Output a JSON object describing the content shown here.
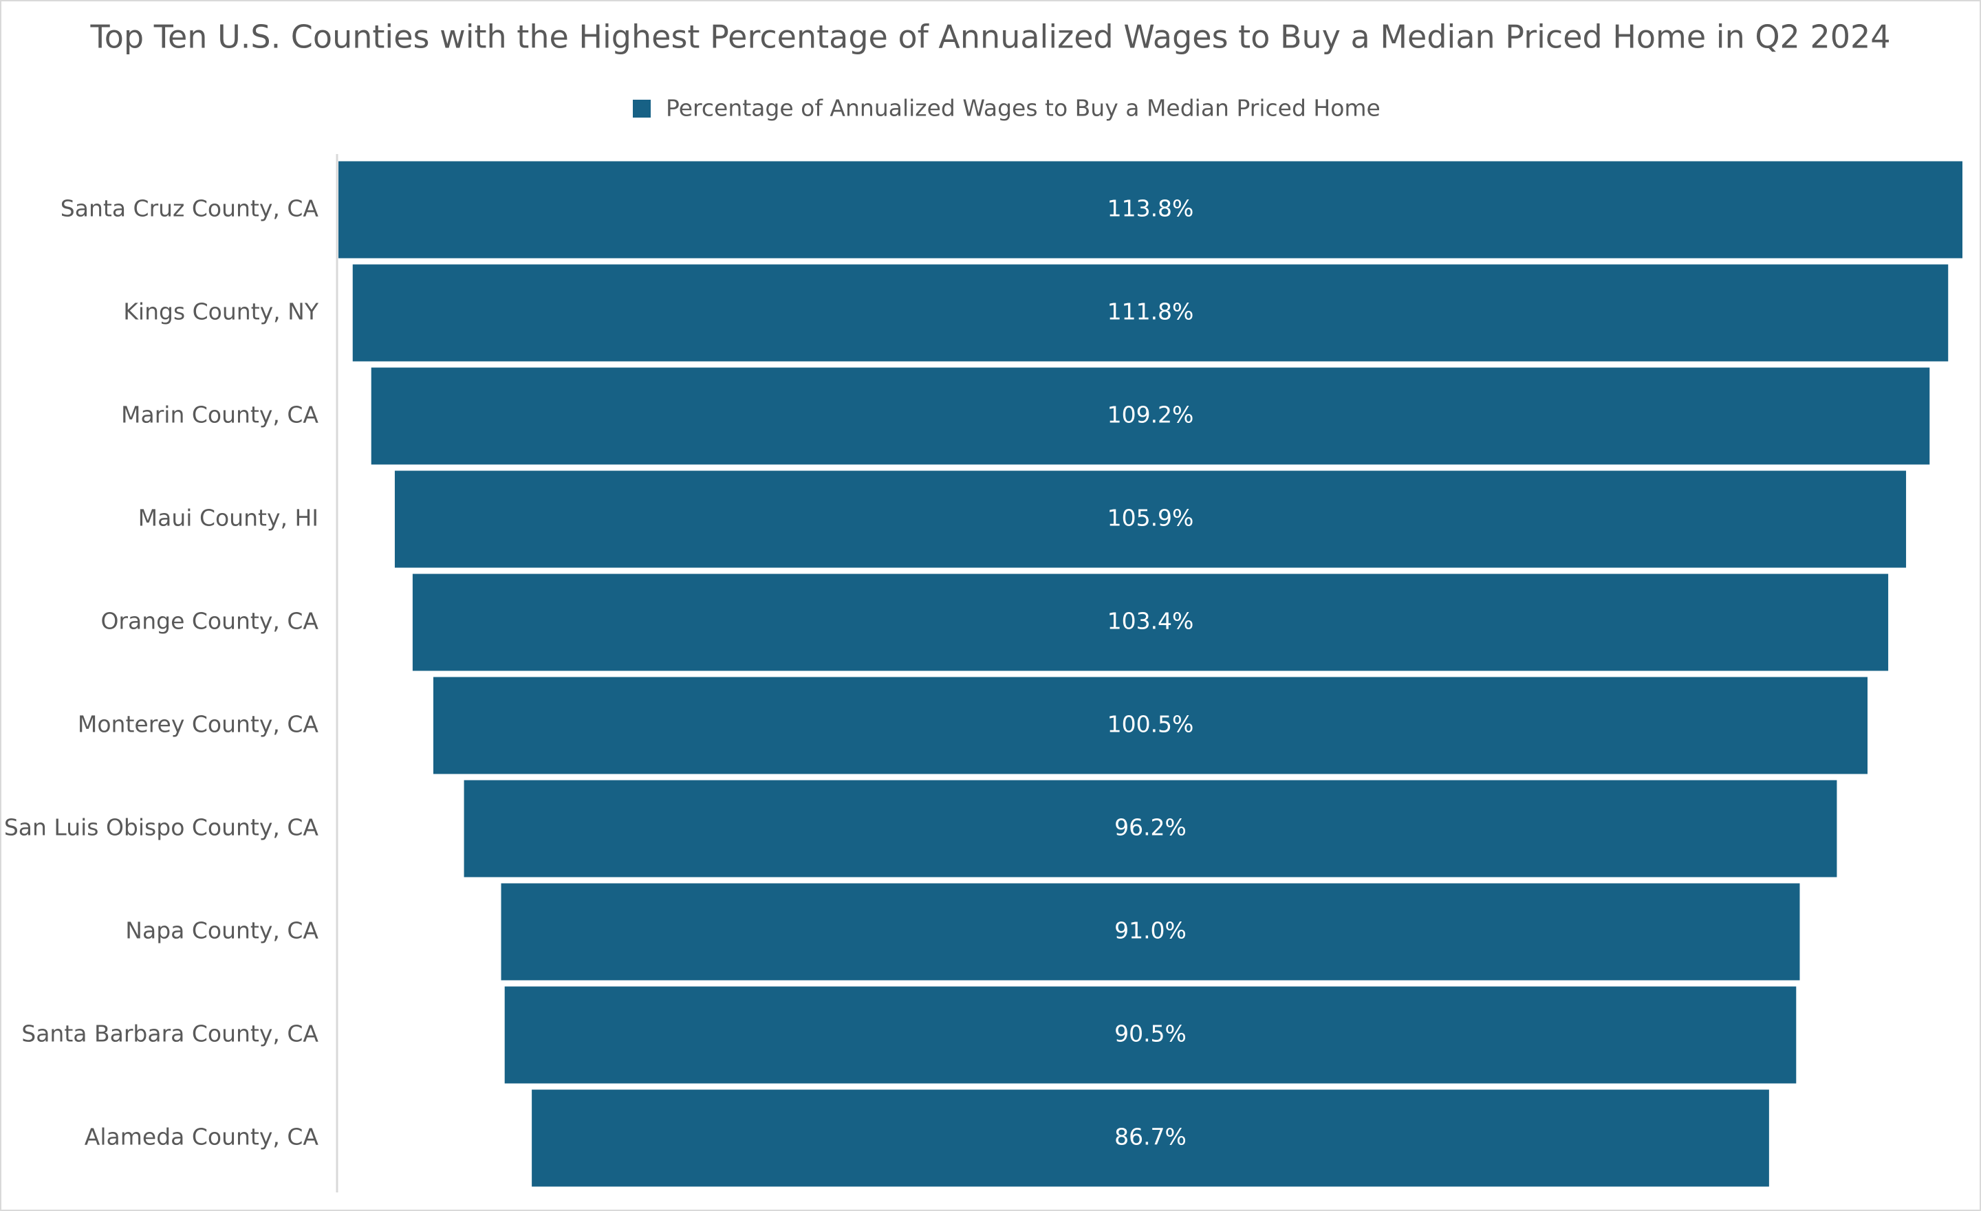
{
  "chart_data": {
    "type": "funnel",
    "title": "Top Ten U.S. Counties with the Highest Percentage of Annualized Wages to Buy a Median Priced Home in Q2 2024",
    "categories": [
      "Santa Cruz County, CA",
      "Kings County, NY",
      "Marin County, CA",
      "Maui County, HI",
      "Orange County, CA",
      "Monterey County, CA",
      "San Luis Obispo County, CA",
      "Napa County, CA",
      "Santa Barbara County, CA",
      "Alameda County, CA"
    ],
    "series": [
      {
        "name": "Percentage of Annualized Wages to Buy a Median Priced Home",
        "color": "#176185",
        "values": [
          113.8,
          111.8,
          109.2,
          105.9,
          103.4,
          100.5,
          96.2,
          91.0,
          90.5,
          86.7
        ],
        "value_labels": [
          "113.8%",
          "111.8%",
          "109.2%",
          "105.9%",
          "103.4%",
          "100.5%",
          "96.2%",
          "91.0%",
          "90.5%",
          "86.7%"
        ]
      }
    ],
    "legend": "top"
  }
}
